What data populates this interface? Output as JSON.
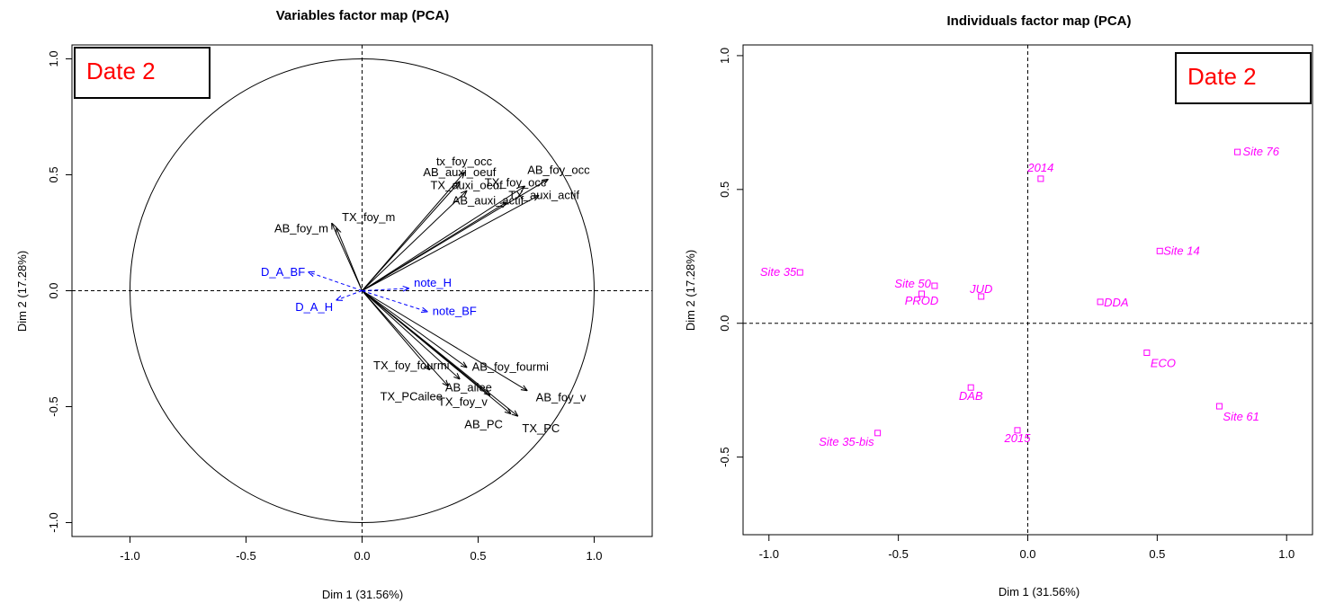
{
  "chart_data": [
    {
      "type": "scatter",
      "subtype": "pca-variables-correlation-circle",
      "title": "Variables factor map (PCA)",
      "xlabel": "Dim 1 (31.56%)",
      "ylabel": "Dim 2 (17.28%)",
      "xlim": [
        -1.25,
        1.25
      ],
      "ylim": [
        -1.06,
        1.06
      ],
      "xticks": [
        "-1.0",
        "-0.5",
        "0.0",
        "0.5",
        "1.0"
      ],
      "yticks": [
        "-1.0",
        "-0.5",
        "0.0",
        "0.5",
        "1.0"
      ],
      "unit_circle": true,
      "annotation": "Date 2",
      "annotation_color": "#ff0000",
      "arrow_colors": {
        "active": "#000000",
        "supplementary": "#0000ff"
      },
      "variables": [
        {
          "name": "tx_foy_occ",
          "x": 0.44,
          "y": 0.51,
          "supplementary": false
        },
        {
          "name": "AB_auxi_oeuf",
          "x": 0.42,
          "y": 0.47,
          "supplementary": false
        },
        {
          "name": "TX_auxi_oeuf",
          "x": 0.45,
          "y": 0.43,
          "supplementary": false
        },
        {
          "name": "TX_foy_occ",
          "x": 0.7,
          "y": 0.45,
          "supplementary": false
        },
        {
          "name": "AB_foy_occ",
          "x": 0.8,
          "y": 0.48,
          "supplementary": false
        },
        {
          "name": "AB_auxi_actif",
          "x": 0.62,
          "y": 0.38,
          "supplementary": false
        },
        {
          "name": "TX_auxi_actif",
          "x": 0.76,
          "y": 0.41,
          "supplementary": false
        },
        {
          "name": "TX_foy_m",
          "x": -0.11,
          "y": 0.27,
          "supplementary": false
        },
        {
          "name": "AB_foy_m",
          "x": -0.13,
          "y": 0.29,
          "supplementary": false
        },
        {
          "name": "TX_foy_fourmi",
          "x": 0.29,
          "y": -0.34,
          "supplementary": false
        },
        {
          "name": "AB_foy_fourmi",
          "x": 0.45,
          "y": -0.33,
          "supplementary": false
        },
        {
          "name": "AB_ailee",
          "x": 0.42,
          "y": -0.38,
          "supplementary": false
        },
        {
          "name": "TX_PCailee",
          "x": 0.37,
          "y": -0.41,
          "supplementary": false
        },
        {
          "name": "TX_foy_v",
          "x": 0.55,
          "y": -0.45,
          "supplementary": false
        },
        {
          "name": "AB_foy_v",
          "x": 0.71,
          "y": -0.43,
          "supplementary": false
        },
        {
          "name": "AB_PC",
          "x": 0.64,
          "y": -0.53,
          "supplementary": false
        },
        {
          "name": "TX_PC",
          "x": 0.67,
          "y": -0.54,
          "supplementary": false
        },
        {
          "name": "D_A_BF",
          "x": -0.23,
          "y": 0.08,
          "supplementary": true
        },
        {
          "name": "D_A_H",
          "x": -0.11,
          "y": -0.04,
          "supplementary": true
        },
        {
          "name": "note_H",
          "x": 0.2,
          "y": 0.01,
          "supplementary": true
        },
        {
          "name": "note_BF",
          "x": 0.28,
          "y": -0.09,
          "supplementary": true
        }
      ]
    },
    {
      "type": "scatter",
      "subtype": "pca-individuals",
      "title": "Individuals factor map (PCA)",
      "xlabel": "Dim 1 (31.56%)",
      "ylabel": "Dim 2 (17.28%)",
      "xlim": [
        -1.1,
        1.1
      ],
      "ylim": [
        -0.79,
        1.04
      ],
      "xticks": [
        "-1.0",
        "-0.5",
        "0.0",
        "0.5",
        "1.0"
      ],
      "yticks": [
        "-0.5",
        "0.0",
        "0.5",
        "1.0"
      ],
      "annotation": "Date 2",
      "annotation_color": "#ff0000",
      "point_color": "#ff00ff",
      "points": [
        {
          "label": "Site 76",
          "x": 0.81,
          "y": 0.64
        },
        {
          "label": "2014",
          "x": 0.05,
          "y": 0.54
        },
        {
          "label": "Site 14",
          "x": 0.51,
          "y": 0.27
        },
        {
          "label": "Site 35",
          "x": -0.88,
          "y": 0.19
        },
        {
          "label": "Site 50",
          "x": -0.36,
          "y": 0.14
        },
        {
          "label": "JUD",
          "x": -0.18,
          "y": 0.1
        },
        {
          "label": "PROD",
          "x": -0.41,
          "y": 0.11
        },
        {
          "label": "DDA",
          "x": 0.28,
          "y": 0.08
        },
        {
          "label": "ECO",
          "x": 0.46,
          "y": -0.11
        },
        {
          "label": "DAB",
          "x": -0.22,
          "y": -0.24
        },
        {
          "label": "Site 61",
          "x": 0.74,
          "y": -0.31
        },
        {
          "label": "Site 35-bis",
          "x": -0.58,
          "y": -0.41
        },
        {
          "label": "2015",
          "x": -0.04,
          "y": -0.4
        }
      ]
    }
  ]
}
